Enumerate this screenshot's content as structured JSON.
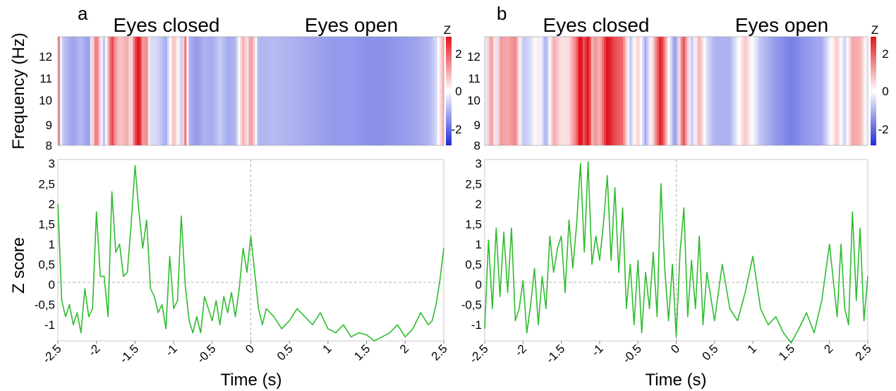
{
  "colors": {
    "trace": "#2ebd2e",
    "negative": "#1f2bd6",
    "neutral": "#ffffff",
    "positive": "#e3141c",
    "reference_line": "#b3b3b3",
    "axis": "#7f7f7f"
  },
  "chart_data": [
    {
      "panel": "a",
      "type": "heatmap",
      "conditions": [
        "Eyes closed",
        "Eyes open"
      ],
      "ylabel": "Frequency (Hz)",
      "yticks": [
        "8",
        "9",
        "10",
        "11",
        "12"
      ],
      "ylim": [
        8,
        13
      ],
      "xlim": [
        -2.5,
        2.5
      ],
      "colorbar": {
        "title": "Z",
        "ticks": [
          "2",
          "0",
          "-2"
        ],
        "range": [
          -2.5,
          2.5
        ]
      },
      "z_profile": {
        "x": [
          -2.5,
          -2.45,
          -2.4,
          -2.3,
          -2.2,
          -2.1,
          -2.0,
          -1.95,
          -1.9,
          -1.8,
          -1.75,
          -1.7,
          -1.6,
          -1.55,
          -1.5,
          -1.45,
          -1.4,
          -1.35,
          -1.3,
          -1.2,
          -1.1,
          -1.0,
          -0.9,
          -0.85,
          -0.8,
          -0.7,
          -0.6,
          -0.5,
          -0.4,
          -0.3,
          -0.2,
          -0.1,
          -0.05,
          0.0,
          0.05,
          0.1,
          0.3,
          0.5,
          0.7,
          0.9,
          1.1,
          1.3,
          1.5,
          1.7,
          1.9,
          2.1,
          2.3,
          2.4,
          2.45,
          2.5
        ],
        "z": [
          2.0,
          -0.6,
          -0.8,
          -1.1,
          -0.8,
          -1.2,
          1.7,
          0.3,
          -0.8,
          2.1,
          1.0,
          0.6,
          0.9,
          0.2,
          1.8,
          2.9,
          1.0,
          1.3,
          -0.4,
          -0.5,
          -1.0,
          0.8,
          -0.6,
          1.6,
          -0.9,
          -1.2,
          -0.9,
          -1.0,
          -0.6,
          -1.0,
          -0.9,
          0.9,
          0.2,
          1.2,
          0.4,
          -0.9,
          -0.8,
          -0.9,
          -1.0,
          -1.1,
          -1.2,
          -1.2,
          -1.3,
          -1.3,
          -1.2,
          -1.1,
          -0.9,
          -0.5,
          0.3,
          0.9
        ]
      },
      "x_label": "Time (s)",
      "y_label": "Z score",
      "xticks": [
        "-2.5",
        "-2",
        "-1.5",
        "-1",
        "-0.5",
        "0",
        "0.5",
        "1",
        "1.5",
        "2",
        "2.5"
      ],
      "y_ticks": [
        "-1",
        "-0,5",
        "0",
        "0,5",
        "1",
        "1,5",
        "2",
        "2,5",
        "3"
      ],
      "xlim_trace": [
        -2.5,
        2.5
      ],
      "ylim_trace": [
        -1.4,
        3.1
      ],
      "series": [
        {
          "type": "line",
          "x": [
            -2.5,
            -2.45,
            -2.4,
            -2.35,
            -2.3,
            -2.25,
            -2.2,
            -2.15,
            -2.1,
            -2.05,
            -2.0,
            -1.95,
            -1.9,
            -1.85,
            -1.8,
            -1.75,
            -1.7,
            -1.65,
            -1.6,
            -1.55,
            -1.5,
            -1.45,
            -1.4,
            -1.35,
            -1.3,
            -1.25,
            -1.2,
            -1.15,
            -1.1,
            -1.05,
            -1.0,
            -0.95,
            -0.9,
            -0.85,
            -0.8,
            -0.75,
            -0.7,
            -0.65,
            -0.6,
            -0.55,
            -0.5,
            -0.45,
            -0.4,
            -0.35,
            -0.3,
            -0.25,
            -0.2,
            -0.15,
            -0.1,
            -0.05,
            0.0,
            0.05,
            0.1,
            0.15,
            0.2,
            0.3,
            0.4,
            0.5,
            0.6,
            0.7,
            0.8,
            0.9,
            1.0,
            1.1,
            1.2,
            1.3,
            1.4,
            1.5,
            1.6,
            1.7,
            1.8,
            1.9,
            2.0,
            2.1,
            2.2,
            2.3,
            2.35,
            2.4,
            2.45,
            2.5
          ],
          "y": [
            2.0,
            -0.4,
            -0.8,
            -0.5,
            -1.0,
            -0.7,
            -1.2,
            -0.1,
            -0.8,
            -0.6,
            1.8,
            0.2,
            0.2,
            -0.8,
            2.3,
            0.8,
            1.0,
            0.2,
            0.3,
            1.5,
            2.95,
            1.8,
            0.9,
            1.6,
            -0.1,
            -0.3,
            -0.7,
            -0.5,
            -1.1,
            0.7,
            -0.6,
            -0.4,
            1.7,
            0.0,
            -0.9,
            -1.2,
            -0.8,
            -1.2,
            -0.3,
            -0.6,
            -0.9,
            -0.4,
            -1.0,
            -0.3,
            -0.7,
            -0.2,
            -0.8,
            -0.1,
            0.9,
            0.3,
            1.2,
            0.3,
            -0.6,
            -1.0,
            -0.6,
            -0.8,
            -1.1,
            -0.9,
            -0.6,
            -0.8,
            -1.0,
            -0.7,
            -1.1,
            -1.2,
            -1.0,
            -1.3,
            -1.2,
            -1.25,
            -1.4,
            -1.3,
            -1.2,
            -1.0,
            -1.3,
            -1.1,
            -0.7,
            -1.0,
            -0.9,
            -0.5,
            0.1,
            0.9
          ]
        }
      ]
    },
    {
      "panel": "b",
      "type": "heatmap",
      "conditions": [
        "Eyes closed",
        "Eyes open"
      ],
      "ylabel": "",
      "yticks": [
        "8",
        "9",
        "10",
        "11",
        "12"
      ],
      "ylim": [
        8,
        13
      ],
      "xlim": [
        -2.5,
        2.5
      ],
      "colorbar": {
        "title": "Z",
        "ticks": [
          "2",
          "0",
          "-2"
        ],
        "range": [
          -2.5,
          2.5
        ]
      },
      "z_profile": {
        "x": [
          -2.5,
          -2.45,
          -2.4,
          -2.35,
          -2.3,
          -2.2,
          -2.1,
          -2.0,
          -1.9,
          -1.8,
          -1.7,
          -1.6,
          -1.5,
          -1.4,
          -1.3,
          -1.25,
          -1.2,
          -1.15,
          -1.1,
          -1.05,
          -1.0,
          -0.9,
          -0.8,
          -0.7,
          -0.6,
          -0.5,
          -0.4,
          -0.3,
          -0.2,
          -0.1,
          -0.05,
          0.0,
          0.05,
          0.1,
          0.2,
          0.3,
          0.4,
          0.5,
          0.7,
          0.9,
          1.1,
          1.3,
          1.5,
          1.7,
          1.9,
          2.1,
          2.2,
          2.3,
          2.4,
          2.5
        ],
        "z": [
          -0.6,
          0.7,
          1.0,
          -0.4,
          1.1,
          0.9,
          1.3,
          -0.7,
          -0.4,
          0.3,
          -1.0,
          0.9,
          0.3,
          0.4,
          1.5,
          2.9,
          1.6,
          3.0,
          0.8,
          1.2,
          0.7,
          2.6,
          1.9,
          1.6,
          -0.7,
          0.6,
          -1.0,
          0.5,
          2.5,
          0.1,
          -0.8,
          -1.3,
          0.8,
          1.9,
          -0.8,
          0.9,
          -0.4,
          -0.9,
          -0.9,
          0.6,
          -0.7,
          -1.2,
          -1.5,
          -1.2,
          -1.0,
          0.6,
          -0.6,
          1.0,
          0.8,
          -0.3
        ]
      },
      "x_label": "Time (s)",
      "y_label": "",
      "xticks": [
        "-2.5",
        "-2",
        "-1.5",
        "-1",
        "-0.5",
        "0",
        "0.5",
        "1",
        "1.5",
        "2",
        "2.5"
      ],
      "y_ticks": [
        "-1",
        "-0,5",
        "0",
        "0,5",
        "1",
        "1,5",
        "2",
        "2,5",
        "3"
      ],
      "xlim_trace": [
        -2.5,
        2.5
      ],
      "ylim_trace": [
        -1.4,
        3.1
      ],
      "series": [
        {
          "type": "line",
          "x": [
            -2.5,
            -2.45,
            -2.4,
            -2.35,
            -2.3,
            -2.25,
            -2.2,
            -2.15,
            -2.1,
            -2.05,
            -2.0,
            -1.95,
            -1.9,
            -1.85,
            -1.8,
            -1.75,
            -1.7,
            -1.65,
            -1.6,
            -1.55,
            -1.5,
            -1.45,
            -1.4,
            -1.35,
            -1.3,
            -1.25,
            -1.2,
            -1.15,
            -1.1,
            -1.05,
            -1.0,
            -0.95,
            -0.9,
            -0.85,
            -0.8,
            -0.75,
            -0.7,
            -0.65,
            -0.6,
            -0.55,
            -0.5,
            -0.45,
            -0.4,
            -0.35,
            -0.3,
            -0.25,
            -0.2,
            -0.15,
            -0.1,
            -0.05,
            0.0,
            0.05,
            0.1,
            0.15,
            0.2,
            0.25,
            0.3,
            0.35,
            0.4,
            0.5,
            0.6,
            0.7,
            0.8,
            0.9,
            1.0,
            1.1,
            1.2,
            1.3,
            1.4,
            1.5,
            1.6,
            1.7,
            1.8,
            1.9,
            2.0,
            2.1,
            2.15,
            2.2,
            2.25,
            2.3,
            2.35,
            2.4,
            2.45,
            2.5
          ],
          "y": [
            -1.1,
            1.1,
            -0.6,
            1.4,
            -0.3,
            1.3,
            -0.2,
            1.4,
            -0.9,
            -0.6,
            0.1,
            -1.2,
            -0.5,
            0.4,
            -1.0,
            0.2,
            -0.6,
            1.2,
            0.3,
            0.9,
            1.2,
            -0.2,
            1.6,
            0.4,
            1.5,
            3.0,
            0.8,
            3.05,
            0.5,
            1.2,
            0.6,
            1.5,
            2.7,
            0.6,
            2.4,
            0.3,
            1.9,
            -0.6,
            0.5,
            -1.0,
            0.6,
            -1.2,
            0.3,
            -0.6,
            0.8,
            -0.8,
            2.5,
            0.4,
            -0.9,
            0.5,
            -1.3,
            0.8,
            1.9,
            -0.8,
            0.6,
            -0.6,
            1.2,
            -1.0,
            0.3,
            -0.9,
            0.5,
            -0.6,
            -0.9,
            -0.2,
            0.7,
            -0.6,
            -1.0,
            -0.8,
            -1.2,
            -1.45,
            -1.1,
            -0.7,
            -1.2,
            -0.4,
            1.0,
            -0.8,
            1.0,
            -0.6,
            -1.0,
            1.8,
            -0.4,
            1.4,
            -0.9,
            0.2
          ]
        }
      ]
    }
  ]
}
